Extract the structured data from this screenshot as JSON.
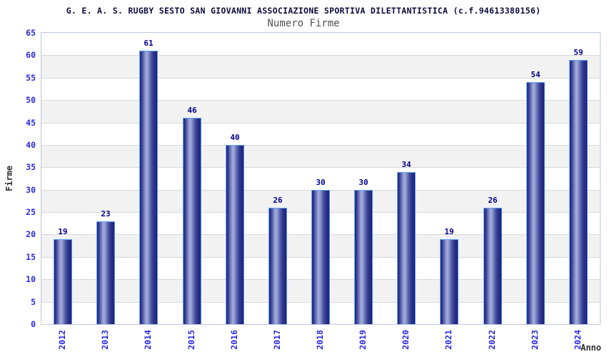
{
  "page": {
    "title": "G. E. A. S. RUGBY SESTO SAN GIOVANNI ASSOCIAZIONE SPORTIVA DILETTANTISTICA (c.f.94613380156)",
    "subtitle": "Numero Firme"
  },
  "chart_data": {
    "type": "bar",
    "title": "G. E. A. S. RUGBY SESTO SAN GIOVANNI ASSOCIAZIONE SPORTIVA DILETTANTISTICA (c.f.94613380156)",
    "subtitle": "Numero Firme",
    "categories": [
      "2012",
      "2013",
      "2014",
      "2015",
      "2016",
      "2017",
      "2018",
      "2019",
      "2020",
      "2021",
      "2022",
      "2023",
      "2024"
    ],
    "values": [
      19,
      23,
      61,
      46,
      40,
      26,
      30,
      30,
      34,
      19,
      26,
      54,
      59
    ],
    "xlabel": "Anno",
    "ylabel": "Firme",
    "ylim": [
      0,
      65
    ],
    "ytick_step": 5,
    "bar_value_labels": true,
    "legend": "none",
    "grid": "alternating-horizontal-bands",
    "colors": {
      "bar_edge": "#5aa0f5",
      "bar_body_dark": "#212679",
      "bar_body_light": "#a2abdb",
      "axis_tick_label": "#2a2ae0",
      "bar_value_label": "#00008b",
      "band_alternate": "#f2f2f2",
      "gridline": "#d9d9d9",
      "plot_border": "#bccadd",
      "title": "#0b0b3d",
      "subtitle": "#525252",
      "axis_title": "#2e2e2e",
      "background": "#ffffff"
    }
  }
}
